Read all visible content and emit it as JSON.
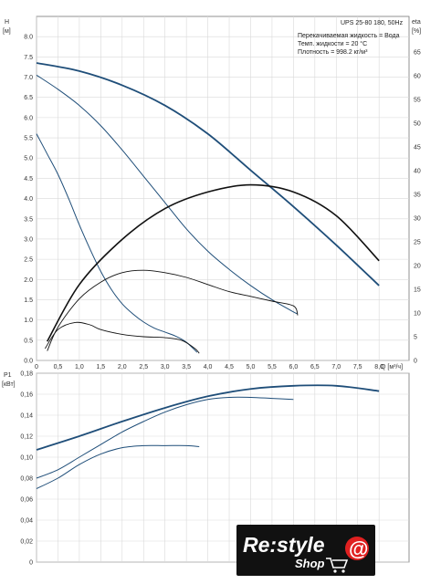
{
  "info": {
    "model": "UPS 25-80 180, 50Hz",
    "liquid": "Перекачиваемая жидкость = Вода",
    "temp": "Темп. жидкости = 20 °C",
    "density": "Плотность = 998.2 кг/м³"
  },
  "logo": {
    "main": "Re:style",
    "sub": "Shop",
    "at": "@",
    "bg": "#111111",
    "accent": "#e02020"
  },
  "colors": {
    "head": "#1f4e79",
    "eta": "#111111",
    "power": "#1f4e79",
    "grid": "#d9d9d9"
  },
  "chart_data": [
    {
      "type": "line",
      "title": "",
      "xlabel": "Q [м³/ч]",
      "ylabel": "H [м]",
      "y2label": "eta [%]",
      "xlim": [
        0,
        8.7
      ],
      "ylim": [
        0,
        8.5
      ],
      "y2lim": [
        0,
        72.5
      ],
      "grid": true,
      "x_ticks": [
        "0",
        "0,5",
        "1,0",
        "1,5",
        "2,0",
        "2,5",
        "3,0",
        "3,5",
        "4,0",
        "4,5",
        "5,0",
        "5,5",
        "6,0",
        "6,5",
        "7,0",
        "7,5",
        "8,0"
      ],
      "y_ticks": [
        "0.0",
        "0.5",
        "1.0",
        "1.5",
        "2.0",
        "2.5",
        "3.0",
        "3.5",
        "4.0",
        "4.5",
        "5.0",
        "5.5",
        "6.0",
        "6.5",
        "7.0",
        "7.5",
        "8.0"
      ],
      "y2_ticks": [
        "0",
        "5",
        "10",
        "15",
        "20",
        "25",
        "30",
        "35",
        "40",
        "45",
        "50",
        "55",
        "60",
        "65"
      ],
      "head_series": [
        {
          "x": [
            0,
            1,
            2,
            3,
            4,
            5,
            6,
            7,
            8
          ],
          "values": [
            7.35,
            7.15,
            6.8,
            6.3,
            5.6,
            4.7,
            3.8,
            2.85,
            1.85
          ]
        },
        {
          "x": [
            0,
            0.5,
            1,
            1.5,
            2,
            2.5,
            3,
            3.5,
            4,
            4.5,
            5,
            5.5,
            6,
            6.1
          ],
          "values": [
            7.05,
            6.7,
            6.3,
            5.8,
            5.2,
            4.55,
            3.9,
            3.25,
            2.7,
            2.25,
            1.85,
            1.5,
            1.2,
            1.15
          ]
        },
        {
          "x": [
            0,
            0.25,
            0.5,
            0.75,
            1,
            1.25,
            1.5,
            1.75,
            2,
            2.25,
            2.5,
            2.75,
            3,
            3.25,
            3.5,
            3.75
          ],
          "values": [
            5.6,
            5.1,
            4.6,
            4.0,
            3.35,
            2.75,
            2.2,
            1.75,
            1.4,
            1.15,
            0.95,
            0.8,
            0.7,
            0.6,
            0.45,
            0.2
          ]
        }
      ],
      "eta_series": [
        {
          "x": [
            0.25,
            1,
            2,
            3,
            4,
            5,
            6,
            7,
            8
          ],
          "values": [
            4,
            16,
            25.5,
            32,
            35.5,
            37,
            35.5,
            30.5,
            21
          ]
        },
        {
          "x": [
            0.25,
            0.5,
            1,
            1.5,
            2,
            2.5,
            3,
            3.5,
            4,
            4.5,
            5,
            5.5,
            6,
            6.1
          ],
          "values": [
            2,
            7,
            13,
            16.5,
            18.5,
            19,
            18.5,
            17.5,
            16,
            14.5,
            13.5,
            12.5,
            11.5,
            9.5
          ]
        },
        {
          "x": [
            0.2,
            0.5,
            0.9,
            1.25,
            1.5,
            2,
            2.5,
            3,
            3.4,
            3.7,
            3.8
          ],
          "values": [
            2.5,
            6.5,
            8,
            7.5,
            6.5,
            5.5,
            5,
            4.8,
            4.2,
            2.5,
            1.5
          ]
        }
      ]
    },
    {
      "type": "line",
      "title": "",
      "xlabel": "",
      "ylabel": "P1 [кВт]",
      "xlim": [
        0,
        8.7
      ],
      "ylim": [
        0,
        0.18
      ],
      "grid": true,
      "y_ticks": [
        "0",
        "0,02",
        "0,04",
        "0,06",
        "0,08",
        "0,10",
        "0,12",
        "0,14",
        "0,16",
        "0,18"
      ],
      "series": [
        {
          "x": [
            0,
            1,
            2,
            3,
            4,
            5,
            6,
            7,
            8
          ],
          "values": [
            0.107,
            0.12,
            0.134,
            0.147,
            0.158,
            0.165,
            0.168,
            0.168,
            0.163
          ]
        },
        {
          "x": [
            0,
            0.5,
            1,
            1.5,
            2,
            2.5,
            3,
            3.5,
            4,
            4.5,
            5,
            5.5,
            6
          ],
          "values": [
            0.08,
            0.088,
            0.1,
            0.112,
            0.124,
            0.134,
            0.143,
            0.15,
            0.155,
            0.157,
            0.157,
            0.156,
            0.155
          ]
        },
        {
          "x": [
            0,
            0.5,
            1,
            1.5,
            2,
            2.5,
            3,
            3.5,
            3.8
          ],
          "values": [
            0.07,
            0.08,
            0.093,
            0.103,
            0.109,
            0.111,
            0.111,
            0.111,
            0.11
          ]
        }
      ]
    }
  ]
}
